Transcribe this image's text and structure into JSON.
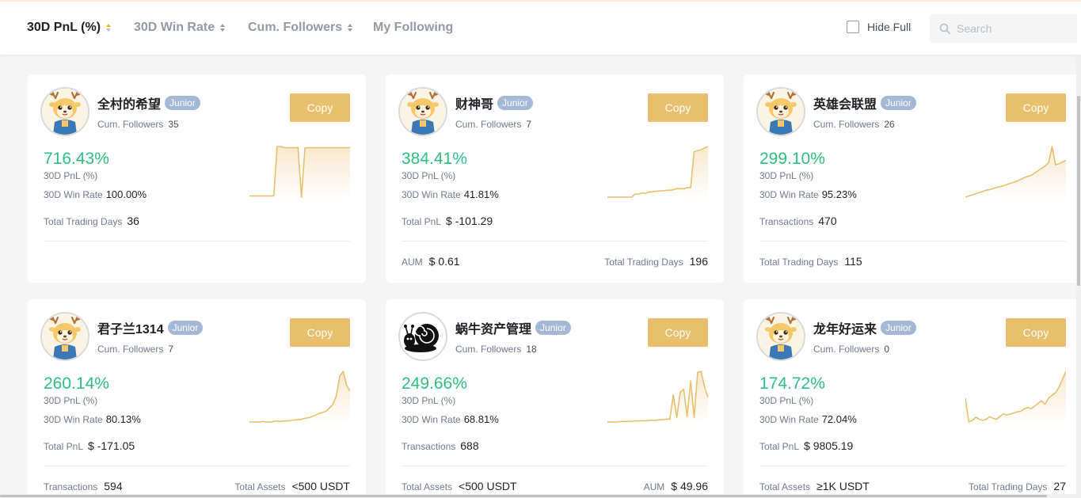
{
  "sort_tabs": [
    {
      "label": "30D PnL (%)",
      "active": true
    },
    {
      "label": "30D Win Rate",
      "active": false
    },
    {
      "label": "Cum. Followers",
      "active": false
    },
    {
      "label": "My Following",
      "active": false
    }
  ],
  "hide_full_label": "Hide Full",
  "search_placeholder": "Search",
  "common": {
    "followers_label": "Cum. Followers",
    "pnl_label": "30D PnL (%)",
    "winrate_label": "30D Win Rate",
    "copy_label": "Copy",
    "badge": "Junior"
  },
  "colors": {
    "accent": "#e8bf6d",
    "positive": "#2ebd85",
    "badge": "#a2b8d6",
    "line": "#e8bf6d"
  },
  "cards": [
    {
      "name": "全村的希望",
      "avatar": "deer-mascot",
      "followers": "35",
      "pnl": "716.43%",
      "winrate": "100.00%",
      "stat3_label": "Total Trading Days",
      "stat3_value": "36",
      "foot_left_label": "",
      "foot_left_value": "",
      "foot_right_label": "",
      "foot_right_value": "",
      "sparkline": [
        5,
        5,
        5,
        5,
        5,
        5,
        5,
        5,
        90,
        90,
        88,
        88,
        88,
        88,
        88,
        3,
        88,
        88,
        88,
        88,
        88,
        88,
        88,
        88,
        88,
        88,
        88,
        88,
        88,
        88
      ]
    },
    {
      "name": "财神哥",
      "avatar": "deer-mascot",
      "followers": "7",
      "pnl": "384.41%",
      "winrate": "41.81%",
      "stat3_label": "Total PnL",
      "stat3_value": "$ -101.29",
      "foot_left_label": "AUM",
      "foot_left_value": "$ 0.61",
      "foot_right_label": "Total Trading Days",
      "foot_right_value": "196",
      "sparkline": [
        2,
        2,
        2,
        2,
        2,
        2,
        2,
        2,
        8,
        8,
        10,
        9,
        12,
        12,
        13,
        14,
        14,
        15,
        15,
        16,
        18,
        18,
        18,
        20,
        20,
        88,
        90,
        92,
        95,
        98
      ]
    },
    {
      "name": "英雄会联盟",
      "avatar": "deer-mascot",
      "followers": "26",
      "pnl": "299.10%",
      "winrate": "95.23%",
      "stat3_label": "Transactions",
      "stat3_value": "470",
      "foot_left_label": "Total Trading Days",
      "foot_left_value": "115",
      "foot_right_label": "",
      "foot_right_value": "",
      "sparkline": [
        2,
        4,
        6,
        8,
        10,
        12,
        14,
        15,
        17,
        19,
        20,
        22,
        24,
        26,
        28,
        30,
        33,
        36,
        38,
        40,
        44,
        48,
        52,
        56,
        62,
        90,
        58,
        60,
        63,
        66
      ]
    },
    {
      "name": "君子兰1314",
      "avatar": "deer-mascot",
      "followers": "7",
      "pnl": "260.14%",
      "winrate": "80.13%",
      "stat3_label": "Total PnL",
      "stat3_value": "$ -171.05",
      "foot_left_label": "Transactions",
      "foot_left_value": "594",
      "foot_right_label": "Total Assets",
      "foot_right_value": "<500 USDT",
      "sparkline": [
        2,
        2,
        2,
        2,
        3,
        2,
        2,
        3,
        4,
        3,
        4,
        4,
        5,
        6,
        6,
        7,
        9,
        10,
        12,
        15,
        18,
        20,
        22,
        28,
        35,
        50,
        88,
        98,
        72,
        60
      ]
    },
    {
      "name": "蜗牛资产管理",
      "avatar": "snail-logo",
      "followers": "18",
      "pnl": "249.66%",
      "winrate": "68.81%",
      "stat3_label": "Transactions",
      "stat3_value": "688",
      "foot_left_label": "Total Assets",
      "foot_left_value": "<500 USDT",
      "foot_right_label": "AUM",
      "foot_right_value": "$ 49.96",
      "sparkline": [
        2,
        2,
        2,
        2,
        3,
        3,
        3,
        3,
        4,
        4,
        4,
        4,
        5,
        5,
        5,
        6,
        6,
        7,
        7,
        50,
        10,
        55,
        60,
        12,
        75,
        10,
        90,
        92,
        65,
        45
      ]
    },
    {
      "name": "龙年好运来",
      "avatar": "deer-mascot",
      "followers": "0",
      "pnl": "174.72%",
      "winrate": "72.04%",
      "stat3_label": "Total PnL",
      "stat3_value": "$ 9805.19",
      "foot_left_label": "Total Assets",
      "foot_left_value": "≥1K USDT",
      "foot_right_label": "Total Trading Days",
      "foot_right_value": "27",
      "sparkline": [
        50,
        5,
        8,
        14,
        10,
        8,
        10,
        15,
        12,
        10,
        16,
        20,
        18,
        20,
        22,
        24,
        25,
        30,
        32,
        30,
        35,
        40,
        45,
        38,
        50,
        55,
        60,
        70,
        85,
        100
      ]
    }
  ]
}
